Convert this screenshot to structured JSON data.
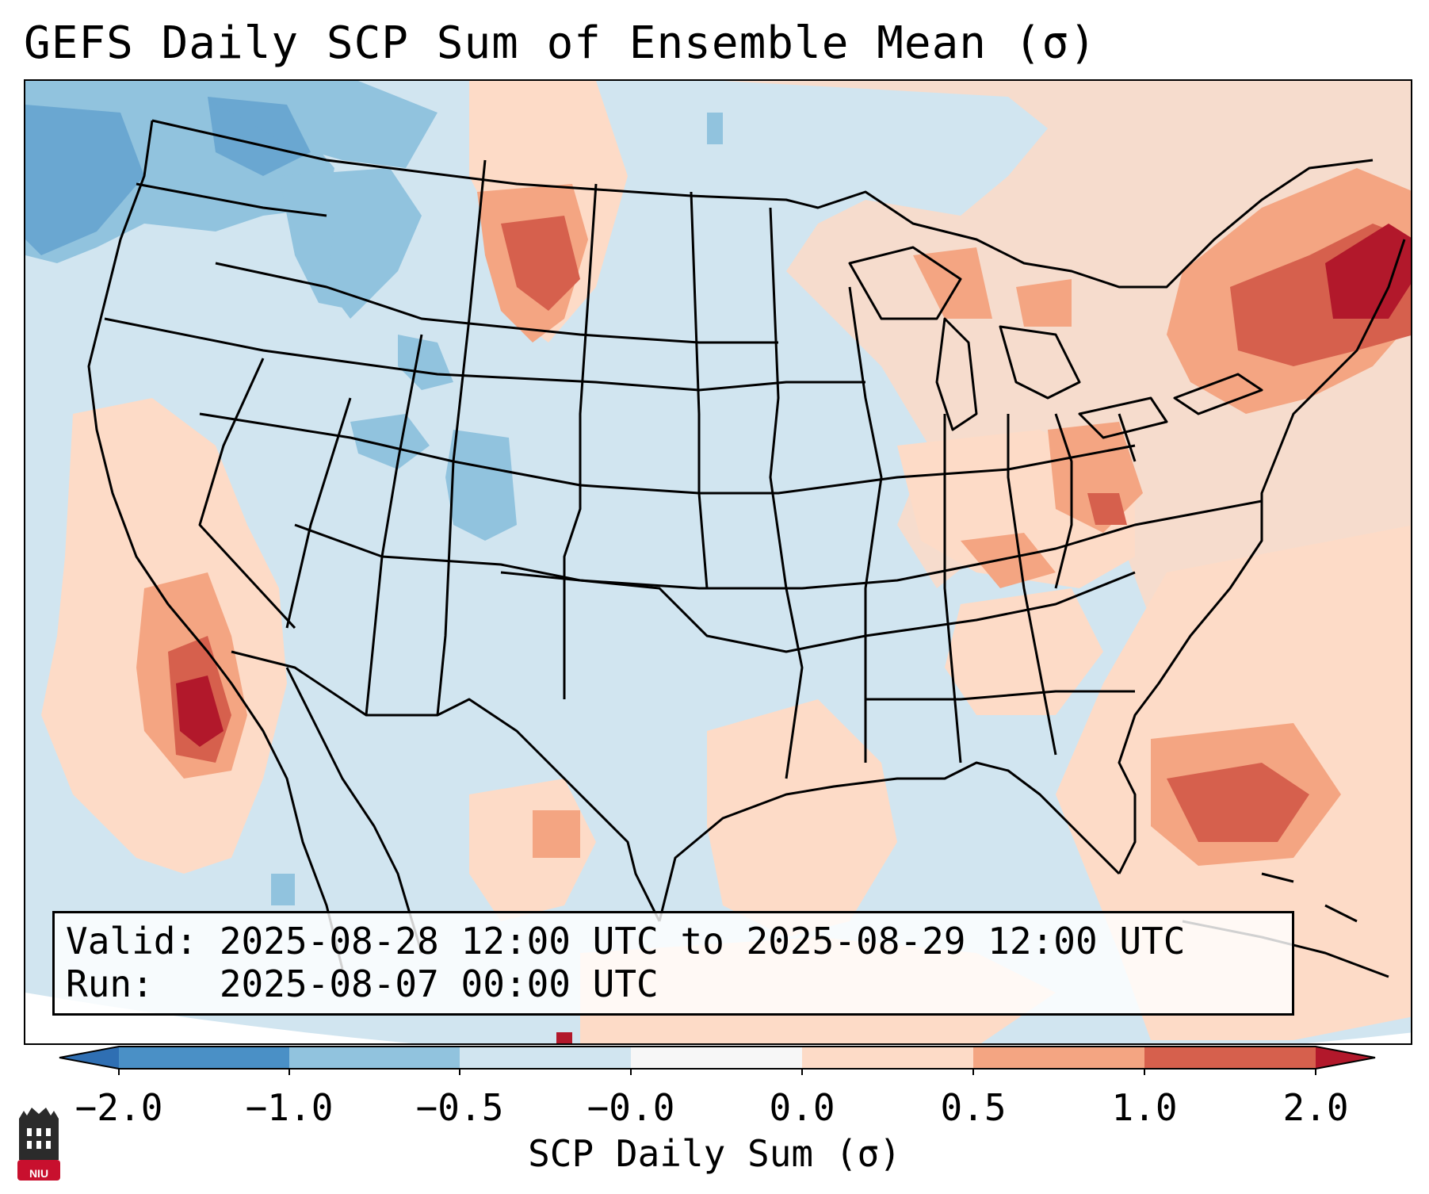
{
  "title": "GEFS Daily SCP Sum of Ensemble Mean (σ)",
  "info": {
    "valid_line": "Valid: 2025-08-28 12:00 UTC to 2025-08-29 12:00 UTC",
    "run_line": "Run:   2025-08-07 00:00 UTC"
  },
  "colorbar": {
    "label": "SCP Daily Sum (σ)",
    "ticks": [
      "−2.0",
      "−1.0",
      "−0.5",
      "−0.0",
      "0.0",
      "0.5",
      "1.0",
      "2.0"
    ],
    "bins": [
      {
        "range": "< -2.0",
        "color": "#2f6fb3"
      },
      {
        "range": "-2.0 to -1.0",
        "color": "#4a90c6"
      },
      {
        "range": "-1.0 to -0.5",
        "color": "#91c3de"
      },
      {
        "range": "-0.5 to -0.0",
        "color": "#d1e5f0"
      },
      {
        "range": "-0.0 to 0.0",
        "color": "#f7f7f7"
      },
      {
        "range": "0.0 to 0.5",
        "color": "#fddbc7"
      },
      {
        "range": "0.5 to 1.0",
        "color": "#f4a582"
      },
      {
        "range": "1.0 to 2.0",
        "color": "#d6604d"
      },
      {
        "range": "> 2.0",
        "color": "#b2182b"
      }
    ]
  },
  "map": {
    "region": "Contiguous United States",
    "background_color": "#d1e5f0",
    "line_color": "#000000"
  },
  "logo": {
    "text": "NIU"
  }
}
